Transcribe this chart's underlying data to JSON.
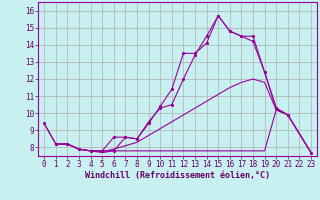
{
  "xlabel": "Windchill (Refroidissement éolien,°C)",
  "bg_color": "#c8f0f0",
  "grid_color": "#b0b0b0",
  "line_color": "#990099",
  "xlim": [
    -0.5,
    23.5
  ],
  "ylim": [
    7.5,
    16.5
  ],
  "xticks": [
    0,
    1,
    2,
    3,
    4,
    5,
    6,
    7,
    8,
    9,
    10,
    11,
    12,
    13,
    14,
    15,
    16,
    17,
    18,
    19,
    20,
    21,
    22,
    23
  ],
  "yticks": [
    8,
    9,
    10,
    11,
    12,
    13,
    14,
    15,
    16
  ],
  "font_color": "#660066",
  "tick_fontsize": 5.5,
  "label_fontsize": 6.0,
  "line1_x": [
    0,
    1,
    2,
    3,
    4,
    5,
    6,
    7,
    8,
    9,
    10,
    11,
    12,
    13,
    14,
    15,
    16,
    17,
    18,
    19,
    20,
    21
  ],
  "line1_y": [
    9.4,
    8.2,
    8.2,
    7.9,
    7.8,
    7.8,
    7.8,
    8.6,
    8.5,
    9.5,
    10.3,
    10.5,
    12.0,
    13.4,
    14.5,
    15.7,
    14.8,
    14.5,
    14.2,
    12.4,
    10.3,
    9.9
  ],
  "line2_x": [
    1,
    2,
    3,
    4,
    5,
    6,
    7,
    8,
    9,
    10,
    11,
    12,
    13,
    14,
    15,
    16,
    17,
    18,
    19,
    20,
    21,
    23
  ],
  "line2_y": [
    8.2,
    8.2,
    7.9,
    7.8,
    7.8,
    8.6,
    8.6,
    8.5,
    9.4,
    10.4,
    11.4,
    13.5,
    13.5,
    14.1,
    15.7,
    14.8,
    14.5,
    14.5,
    12.4,
    10.3,
    9.9,
    7.7
  ],
  "line3_x": [
    0,
    1,
    2,
    3,
    4,
    5,
    6,
    7,
    8,
    9,
    10,
    11,
    12,
    13,
    14,
    15,
    16,
    17,
    18,
    19,
    20,
    21,
    23
  ],
  "line3_y": [
    9.4,
    8.2,
    8.2,
    7.9,
    7.8,
    7.75,
    7.9,
    8.1,
    8.3,
    8.7,
    9.1,
    9.5,
    9.9,
    10.3,
    10.7,
    11.1,
    11.5,
    11.8,
    12.0,
    11.8,
    10.2,
    9.9,
    7.7
  ],
  "line4_x": [
    1,
    2,
    3,
    4,
    5,
    6,
    7,
    8,
    9,
    10,
    11,
    12,
    13,
    14,
    15,
    16,
    17,
    18,
    19,
    20,
    21,
    23
  ],
  "line4_y": [
    8.2,
    8.2,
    7.9,
    7.8,
    7.7,
    7.8,
    7.8,
    7.8,
    7.8,
    7.8,
    7.8,
    7.8,
    7.8,
    7.8,
    7.8,
    7.8,
    7.8,
    7.8,
    7.8,
    10.2,
    9.9,
    7.7
  ]
}
